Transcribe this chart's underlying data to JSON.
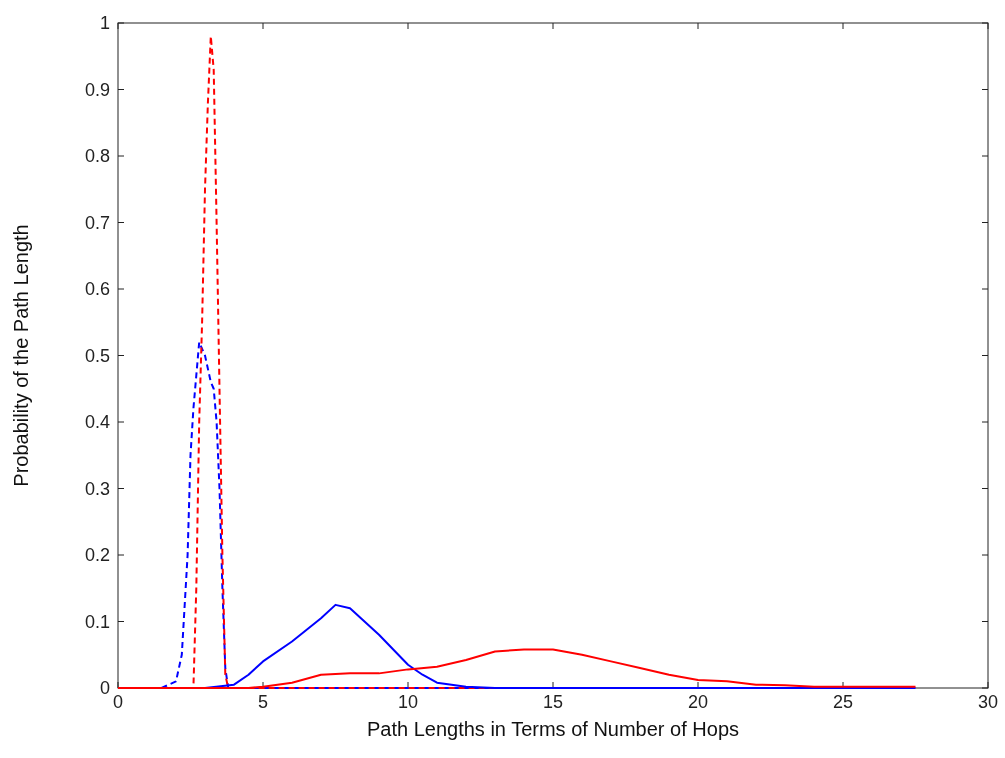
{
  "chart_data": {
    "type": "line",
    "xlabel": "Path Lengths in Terms of Number of Hops",
    "ylabel": "Probability of the Path Length",
    "xlim": [
      0,
      30
    ],
    "ylim": [
      0,
      1
    ],
    "xticks": [
      0,
      5,
      10,
      15,
      20,
      25,
      30
    ],
    "yticks": [
      0,
      0.1,
      0.2,
      0.3,
      0.4,
      0.5,
      0.6,
      0.7,
      0.8,
      0.9,
      1
    ],
    "grid": false,
    "marker": "none",
    "series": [
      {
        "color": "#0000ff",
        "line_style": "dashed",
        "x": [
          1.5,
          2.0,
          2.2,
          2.4,
          2.5,
          2.6,
          2.7,
          2.8,
          3.0,
          3.2,
          3.3,
          3.4,
          3.5,
          3.6,
          3.7,
          3.8,
          5,
          10,
          15
        ],
        "values": [
          0,
          0.01,
          0.05,
          0.2,
          0.35,
          0.42,
          0.47,
          0.52,
          0.5,
          0.46,
          0.45,
          0.4,
          0.3,
          0.15,
          0.03,
          0,
          0,
          0,
          0
        ]
      },
      {
        "color": "#ff0000",
        "line_style": "dashed",
        "x": [
          0,
          2.6,
          2.7,
          2.8,
          2.9,
          3.0,
          3.1,
          3.2,
          3.3,
          3.4,
          3.5,
          3.6,
          3.7,
          3.8,
          5,
          10,
          15
        ],
        "values": [
          0,
          0,
          0.15,
          0.4,
          0.55,
          0.75,
          0.88,
          0.98,
          0.93,
          0.7,
          0.45,
          0.2,
          0.02,
          0,
          0,
          0,
          0
        ]
      },
      {
        "color": "#0000ff",
        "line_style": "solid",
        "x": [
          3,
          4,
          4.5,
          5,
          6,
          7,
          7.5,
          8,
          9,
          10,
          10.5,
          11,
          12,
          13,
          20,
          27.5
        ],
        "values": [
          0,
          0.005,
          0.02,
          0.04,
          0.07,
          0.105,
          0.125,
          0.12,
          0.08,
          0.035,
          0.02,
          0.008,
          0.002,
          0,
          0,
          0
        ]
      },
      {
        "color": "#ff0000",
        "line_style": "solid",
        "x": [
          0,
          4.5,
          5,
          6,
          7,
          8,
          9,
          10,
          11,
          12,
          13,
          14,
          15,
          16,
          17,
          18,
          19,
          20,
          21,
          22,
          23,
          24,
          25,
          27.5
        ],
        "values": [
          0,
          0,
          0.002,
          0.008,
          0.02,
          0.022,
          0.022,
          0.028,
          0.032,
          0.042,
          0.055,
          0.058,
          0.058,
          0.05,
          0.04,
          0.03,
          0.02,
          0.012,
          0.01,
          0.005,
          0.004,
          0.002,
          0.002,
          0.002
        ]
      }
    ]
  }
}
